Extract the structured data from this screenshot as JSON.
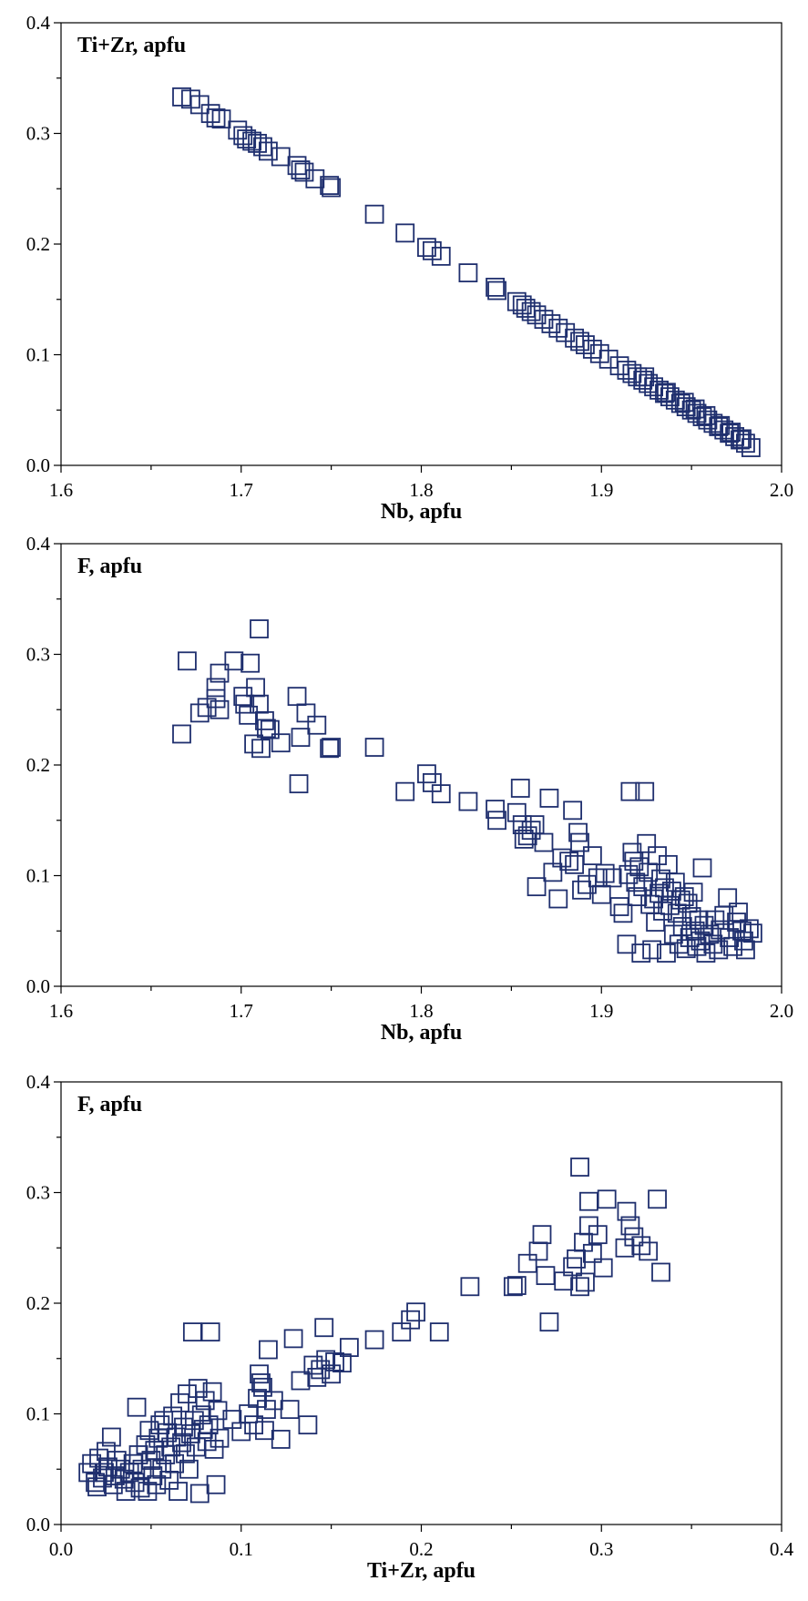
{
  "colors": {
    "marker": "#1f2f6e",
    "axis": "#000000"
  },
  "chart_data": [
    {
      "type": "scatter",
      "title": "",
      "panel_label": "Ti+Zr, apfu",
      "xlabel": "Nb, apfu",
      "ylabel": "",
      "xlim": [
        1.6,
        2.0
      ],
      "ylim": [
        0.0,
        0.4
      ],
      "xticks": [
        "1.6",
        "1.7",
        "1.8",
        "1.9",
        "2.0"
      ],
      "yticks": [
        "0.0",
        "0.1",
        "0.2",
        "0.3",
        "0.4"
      ],
      "grid": false,
      "marker": "open-square",
      "points": [
        [
          1.667,
          0.333
        ],
        [
          1.672,
          0.331
        ],
        [
          1.677,
          0.326
        ],
        [
          1.683,
          0.318
        ],
        [
          1.686,
          0.314
        ],
        [
          1.689,
          0.313
        ],
        [
          1.698,
          0.303
        ],
        [
          1.701,
          0.298
        ],
        [
          1.703,
          0.295
        ],
        [
          1.706,
          0.293
        ],
        [
          1.709,
          0.291
        ],
        [
          1.712,
          0.288
        ],
        [
          1.715,
          0.284
        ],
        [
          1.722,
          0.279
        ],
        [
          1.731,
          0.271
        ],
        [
          1.733,
          0.267
        ],
        [
          1.735,
          0.265
        ],
        [
          1.741,
          0.259
        ],
        [
          1.749,
          0.253
        ],
        [
          1.75,
          0.251
        ],
        [
          1.774,
          0.227
        ],
        [
          1.791,
          0.21
        ],
        [
          1.803,
          0.197
        ],
        [
          1.806,
          0.194
        ],
        [
          1.811,
          0.189
        ],
        [
          1.826,
          0.174
        ],
        [
          1.841,
          0.161
        ],
        [
          1.842,
          0.158
        ],
        [
          1.853,
          0.148
        ],
        [
          1.856,
          0.145
        ],
        [
          1.858,
          0.142
        ],
        [
          1.861,
          0.139
        ],
        [
          1.864,
          0.136
        ],
        [
          1.868,
          0.132
        ],
        [
          1.872,
          0.128
        ],
        [
          1.876,
          0.124
        ],
        [
          1.88,
          0.12
        ],
        [
          1.885,
          0.115
        ],
        [
          1.888,
          0.112
        ],
        [
          1.891,
          0.109
        ],
        [
          1.895,
          0.105
        ],
        [
          1.899,
          0.101
        ],
        [
          1.904,
          0.096
        ],
        [
          1.91,
          0.09
        ],
        [
          1.914,
          0.086
        ],
        [
          1.917,
          0.083
        ],
        [
          1.92,
          0.08
        ],
        [
          1.923,
          0.077
        ],
        [
          1.926,
          0.074
        ],
        [
          1.929,
          0.071
        ],
        [
          1.932,
          0.068
        ],
        [
          1.935,
          0.065
        ],
        [
          1.938,
          0.062
        ],
        [
          1.941,
          0.059
        ],
        [
          1.944,
          0.056
        ],
        [
          1.947,
          0.053
        ],
        [
          1.95,
          0.05
        ],
        [
          1.953,
          0.047
        ],
        [
          1.956,
          0.044
        ],
        [
          1.959,
          0.041
        ],
        [
          1.962,
          0.038
        ],
        [
          1.965,
          0.035
        ],
        [
          1.968,
          0.032
        ],
        [
          1.971,
          0.029
        ],
        [
          1.974,
          0.026
        ],
        [
          1.977,
          0.023
        ],
        [
          1.98,
          0.02
        ],
        [
          1.983,
          0.016
        ],
        [
          1.924,
          0.08
        ],
        [
          1.936,
          0.066
        ],
        [
          1.946,
          0.057
        ],
        [
          1.952,
          0.051
        ],
        [
          1.958,
          0.045
        ],
        [
          1.966,
          0.036
        ],
        [
          1.972,
          0.03
        ],
        [
          1.978,
          0.024
        ]
      ]
    },
    {
      "type": "scatter",
      "title": "",
      "panel_label": "F, apfu",
      "xlabel": "Nb, apfu",
      "ylabel": "",
      "xlim": [
        1.6,
        2.0
      ],
      "ylim": [
        0.0,
        0.4
      ],
      "xticks": [
        "1.6",
        "1.7",
        "1.8",
        "1.9",
        "2.0"
      ],
      "yticks": [
        "0.0",
        "0.1",
        "0.2",
        "0.3",
        "0.4"
      ],
      "grid": false,
      "marker": "open-square",
      "points": [
        [
          1.667,
          0.228
        ],
        [
          1.67,
          0.294
        ],
        [
          1.677,
          0.247
        ],
        [
          1.681,
          0.252
        ],
        [
          1.686,
          0.26
        ],
        [
          1.686,
          0.27
        ],
        [
          1.688,
          0.283
        ],
        [
          1.688,
          0.25
        ],
        [
          1.696,
          0.294
        ],
        [
          1.701,
          0.262
        ],
        [
          1.702,
          0.255
        ],
        [
          1.704,
          0.245
        ],
        [
          1.705,
          0.292
        ],
        [
          1.707,
          0.219
        ],
        [
          1.708,
          0.27
        ],
        [
          1.71,
          0.323
        ],
        [
          1.71,
          0.255
        ],
        [
          1.711,
          0.215
        ],
        [
          1.713,
          0.24
        ],
        [
          1.714,
          0.233
        ],
        [
          1.716,
          0.232
        ],
        [
          1.722,
          0.22
        ],
        [
          1.731,
          0.262
        ],
        [
          1.732,
          0.183
        ],
        [
          1.733,
          0.225
        ],
        [
          1.736,
          0.247
        ],
        [
          1.742,
          0.236
        ],
        [
          1.749,
          0.215
        ],
        [
          1.75,
          0.216
        ],
        [
          1.774,
          0.216
        ],
        [
          1.791,
          0.176
        ],
        [
          1.803,
          0.192
        ],
        [
          1.806,
          0.184
        ],
        [
          1.811,
          0.174
        ],
        [
          1.826,
          0.167
        ],
        [
          1.841,
          0.16
        ],
        [
          1.842,
          0.15
        ],
        [
          1.853,
          0.157
        ],
        [
          1.855,
          0.179
        ],
        [
          1.856,
          0.146
        ],
        [
          1.857,
          0.133
        ],
        [
          1.859,
          0.136
        ],
        [
          1.861,
          0.141
        ],
        [
          1.863,
          0.146
        ],
        [
          1.864,
          0.09
        ],
        [
          1.868,
          0.13
        ],
        [
          1.871,
          0.17
        ],
        [
          1.873,
          0.103
        ],
        [
          1.876,
          0.079
        ],
        [
          1.878,
          0.116
        ],
        [
          1.882,
          0.113
        ],
        [
          1.884,
          0.159
        ],
        [
          1.885,
          0.11
        ],
        [
          1.887,
          0.139
        ],
        [
          1.888,
          0.13
        ],
        [
          1.889,
          0.087
        ],
        [
          1.892,
          0.092
        ],
        [
          1.895,
          0.118
        ],
        [
          1.898,
          0.098
        ],
        [
          1.9,
          0.083
        ],
        [
          1.902,
          0.102
        ],
        [
          1.906,
          0.098
        ],
        [
          1.91,
          0.072
        ],
        [
          1.912,
          0.066
        ],
        [
          1.914,
          0.038
        ],
        [
          1.915,
          0.101
        ],
        [
          1.916,
          0.176
        ],
        [
          1.917,
          0.121
        ],
        [
          1.918,
          0.113
        ],
        [
          1.919,
          0.094
        ],
        [
          1.92,
          0.081
        ],
        [
          1.921,
          0.108
        ],
        [
          1.922,
          0.03
        ],
        [
          1.923,
          0.09
        ],
        [
          1.924,
          0.176
        ],
        [
          1.925,
          0.129
        ],
        [
          1.926,
          0.103
        ],
        [
          1.927,
          0.074
        ],
        [
          1.928,
          0.033
        ],
        [
          1.929,
          0.079
        ],
        [
          1.93,
          0.058
        ],
        [
          1.931,
          0.118
        ],
        [
          1.932,
          0.084
        ],
        [
          1.933,
          0.097
        ],
        [
          1.934,
          0.068
        ],
        [
          1.935,
          0.089
        ],
        [
          1.936,
          0.03
        ],
        [
          1.937,
          0.11
        ],
        [
          1.938,
          0.073
        ],
        [
          1.939,
          0.086
        ],
        [
          1.94,
          0.047
        ],
        [
          1.941,
          0.094
        ],
        [
          1.942,
          0.066
        ],
        [
          1.943,
          0.038
        ],
        [
          1.944,
          0.078
        ],
        [
          1.945,
          0.054
        ],
        [
          1.946,
          0.081
        ],
        [
          1.947,
          0.034
        ],
        [
          1.948,
          0.075
        ],
        [
          1.949,
          0.044
        ],
        [
          1.95,
          0.063
        ],
        [
          1.951,
          0.085
        ],
        [
          1.952,
          0.05
        ],
        [
          1.953,
          0.036
        ],
        [
          1.954,
          0.06
        ],
        [
          1.955,
          0.041
        ],
        [
          1.956,
          0.107
        ],
        [
          1.957,
          0.055
        ],
        [
          1.958,
          0.03
        ],
        [
          1.96,
          0.047
        ],
        [
          1.962,
          0.038
        ],
        [
          1.963,
          0.06
        ],
        [
          1.965,
          0.033
        ],
        [
          1.966,
          0.051
        ],
        [
          1.968,
          0.064
        ],
        [
          1.97,
          0.08
        ],
        [
          1.971,
          0.044
        ],
        [
          1.973,
          0.036
        ],
        [
          1.975,
          0.058
        ],
        [
          1.976,
          0.067
        ],
        [
          1.978,
          0.05
        ],
        [
          1.979,
          0.041
        ],
        [
          1.98,
          0.033
        ],
        [
          1.982,
          0.052
        ],
        [
          1.984,
          0.048
        ]
      ]
    },
    {
      "type": "scatter",
      "title": "",
      "panel_label": "F, apfu",
      "xlabel": "Ti+Zr, apfu",
      "ylabel": "",
      "xlim": [
        0.0,
        0.4
      ],
      "ylim": [
        0.0,
        0.4
      ],
      "xticks": [
        "0.0",
        "0.1",
        "0.2",
        "0.3",
        "0.4"
      ],
      "yticks": [
        "0.0",
        "0.1",
        "0.2",
        "0.3",
        "0.4"
      ],
      "grid": false,
      "marker": "open-square",
      "points": [
        [
          0.015,
          0.047
        ],
        [
          0.017,
          0.055
        ],
        [
          0.019,
          0.038
        ],
        [
          0.02,
          0.034
        ],
        [
          0.021,
          0.06
        ],
        [
          0.023,
          0.042
        ],
        [
          0.024,
          0.047
        ],
        [
          0.025,
          0.066
        ],
        [
          0.026,
          0.052
        ],
        [
          0.028,
          0.079
        ],
        [
          0.029,
          0.036
        ],
        [
          0.03,
          0.044
        ],
        [
          0.031,
          0.058
        ],
        [
          0.033,
          0.05
        ],
        [
          0.035,
          0.041
        ],
        [
          0.036,
          0.03
        ],
        [
          0.038,
          0.047
        ],
        [
          0.04,
          0.055
        ],
        [
          0.041,
          0.038
        ],
        [
          0.042,
          0.106
        ],
        [
          0.043,
          0.063
        ],
        [
          0.044,
          0.033
        ],
        [
          0.045,
          0.05
        ],
        [
          0.047,
          0.072
        ],
        [
          0.048,
          0.03
        ],
        [
          0.049,
          0.085
        ],
        [
          0.05,
          0.058
        ],
        [
          0.051,
          0.044
        ],
        [
          0.052,
          0.067
        ],
        [
          0.053,
          0.036
        ],
        [
          0.054,
          0.078
        ],
        [
          0.055,
          0.09
        ],
        [
          0.056,
          0.05
        ],
        [
          0.057,
          0.094
        ],
        [
          0.058,
          0.063
        ],
        [
          0.059,
          0.083
        ],
        [
          0.06,
          0.04
        ],
        [
          0.061,
          0.07
        ],
        [
          0.062,
          0.098
        ],
        [
          0.063,
          0.055
        ],
        [
          0.064,
          0.079
        ],
        [
          0.065,
          0.03
        ],
        [
          0.066,
          0.11
        ],
        [
          0.067,
          0.074
        ],
        [
          0.068,
          0.088
        ],
        [
          0.069,
          0.064
        ],
        [
          0.07,
          0.118
        ],
        [
          0.071,
          0.05
        ],
        [
          0.072,
          0.082
        ],
        [
          0.073,
          0.174
        ],
        [
          0.074,
          0.094
        ],
        [
          0.075,
          0.07
        ],
        [
          0.076,
          0.123
        ],
        [
          0.077,
          0.028
        ],
        [
          0.078,
          0.099
        ],
        [
          0.079,
          0.086
        ],
        [
          0.08,
          0.112
        ],
        [
          0.081,
          0.075
        ],
        [
          0.082,
          0.09
        ],
        [
          0.083,
          0.174
        ],
        [
          0.084,
          0.12
        ],
        [
          0.085,
          0.068
        ],
        [
          0.086,
          0.036
        ],
        [
          0.087,
          0.103
        ],
        [
          0.088,
          0.078
        ],
        [
          0.095,
          0.095
        ],
        [
          0.1,
          0.084
        ],
        [
          0.104,
          0.1
        ],
        [
          0.107,
          0.09
        ],
        [
          0.109,
          0.114
        ],
        [
          0.11,
          0.136
        ],
        [
          0.111,
          0.128
        ],
        [
          0.112,
          0.124
        ],
        [
          0.113,
          0.085
        ],
        [
          0.114,
          0.104
        ],
        [
          0.115,
          0.158
        ],
        [
          0.118,
          0.112
        ],
        [
          0.122,
          0.077
        ],
        [
          0.127,
          0.104
        ],
        [
          0.129,
          0.168
        ],
        [
          0.133,
          0.13
        ],
        [
          0.137,
          0.09
        ],
        [
          0.14,
          0.144
        ],
        [
          0.142,
          0.133
        ],
        [
          0.144,
          0.14
        ],
        [
          0.146,
          0.178
        ],
        [
          0.147,
          0.149
        ],
        [
          0.15,
          0.136
        ],
        [
          0.152,
          0.147
        ],
        [
          0.156,
          0.146
        ],
        [
          0.16,
          0.16
        ],
        [
          0.174,
          0.167
        ],
        [
          0.189,
          0.174
        ],
        [
          0.194,
          0.185
        ],
        [
          0.197,
          0.192
        ],
        [
          0.21,
          0.174
        ],
        [
          0.227,
          0.215
        ],
        [
          0.251,
          0.215
        ],
        [
          0.253,
          0.216
        ],
        [
          0.259,
          0.236
        ],
        [
          0.265,
          0.247
        ],
        [
          0.267,
          0.262
        ],
        [
          0.269,
          0.225
        ],
        [
          0.271,
          0.183
        ],
        [
          0.279,
          0.22
        ],
        [
          0.284,
          0.233
        ],
        [
          0.286,
          0.24
        ],
        [
          0.288,
          0.215
        ],
        [
          0.288,
          0.323
        ],
        [
          0.29,
          0.255
        ],
        [
          0.291,
          0.219
        ],
        [
          0.293,
          0.27
        ],
        [
          0.293,
          0.292
        ],
        [
          0.295,
          0.245
        ],
        [
          0.298,
          0.262
        ],
        [
          0.301,
          0.232
        ],
        [
          0.303,
          0.294
        ],
        [
          0.313,
          0.25
        ],
        [
          0.314,
          0.283
        ],
        [
          0.316,
          0.27
        ],
        [
          0.318,
          0.26
        ],
        [
          0.322,
          0.252
        ],
        [
          0.326,
          0.247
        ],
        [
          0.331,
          0.294
        ],
        [
          0.333,
          0.228
        ]
      ]
    }
  ]
}
